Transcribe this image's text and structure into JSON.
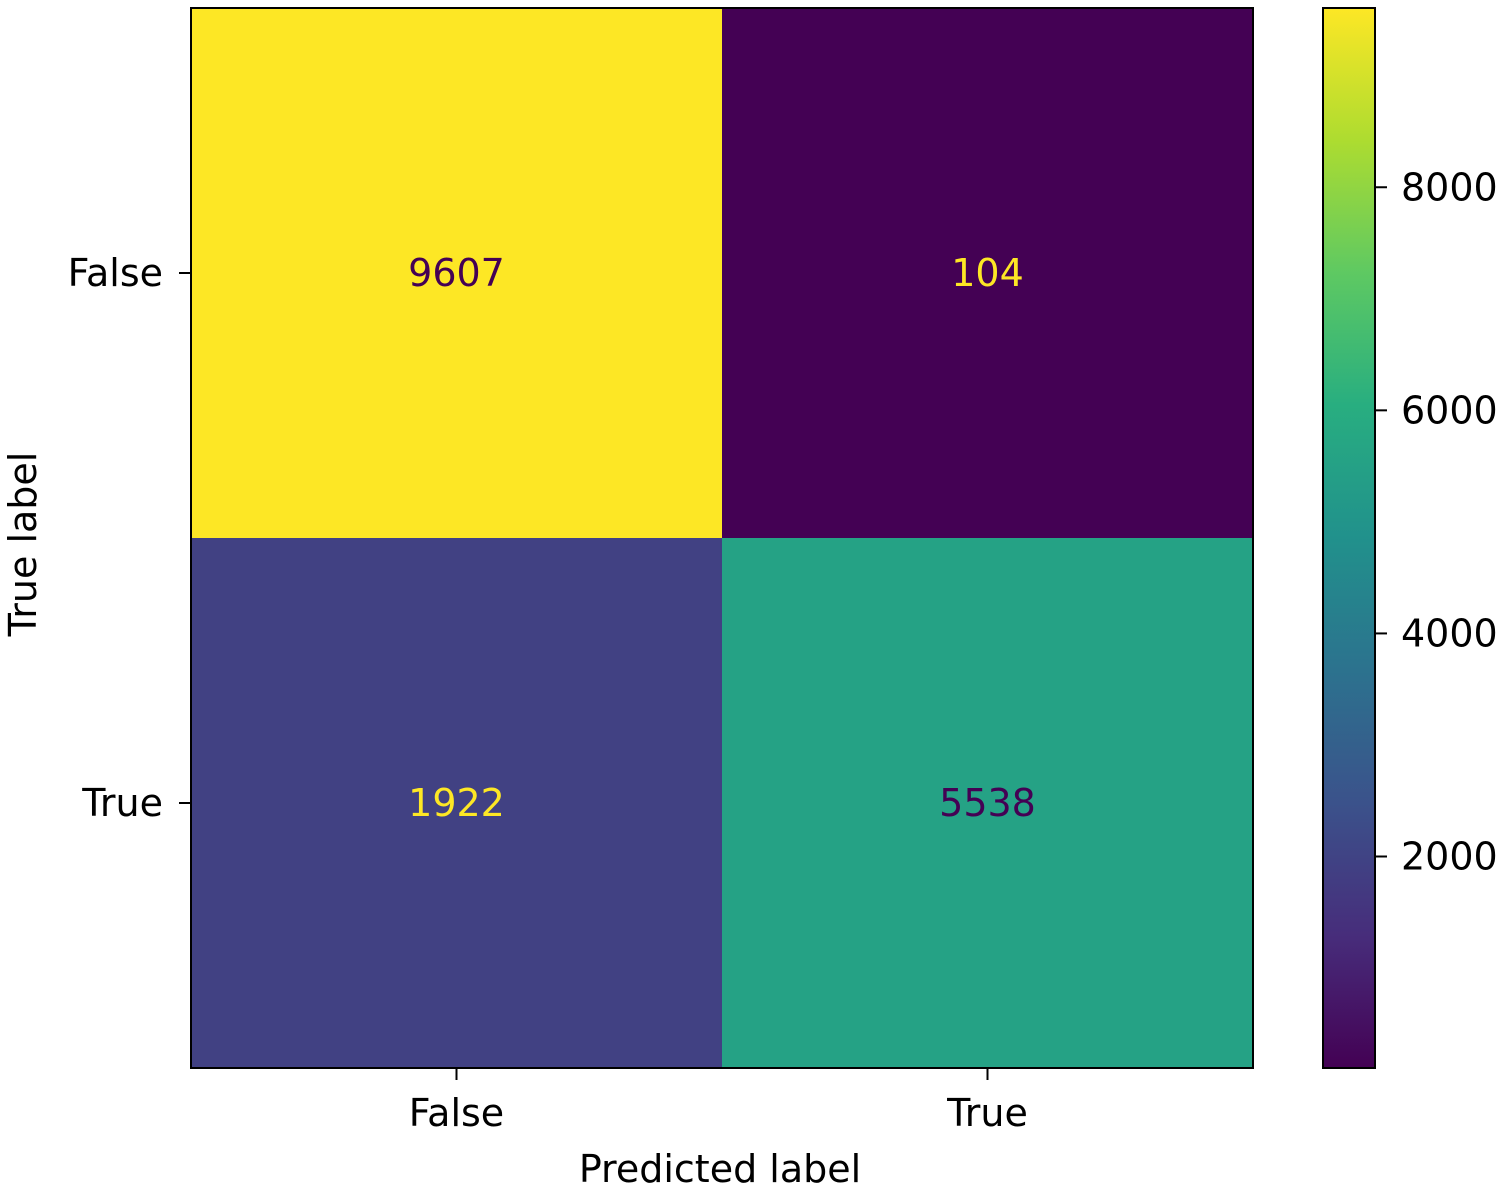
{
  "chart_data": {
    "type": "heatmap",
    "title": "",
    "xlabel": "Predicted label",
    "ylabel": "True label",
    "x_categories": [
      "False",
      "True"
    ],
    "y_categories": [
      "False",
      "True"
    ],
    "matrix": [
      [
        9607,
        104
      ],
      [
        1922,
        5538
      ]
    ],
    "colormap": "viridis",
    "colorbar": {
      "min": 104,
      "max": 9607,
      "ticks": [
        2000,
        4000,
        6000,
        8000
      ]
    },
    "colors": {
      "text_on_light": "#440154",
      "text_on_dark": "#fde725"
    }
  }
}
